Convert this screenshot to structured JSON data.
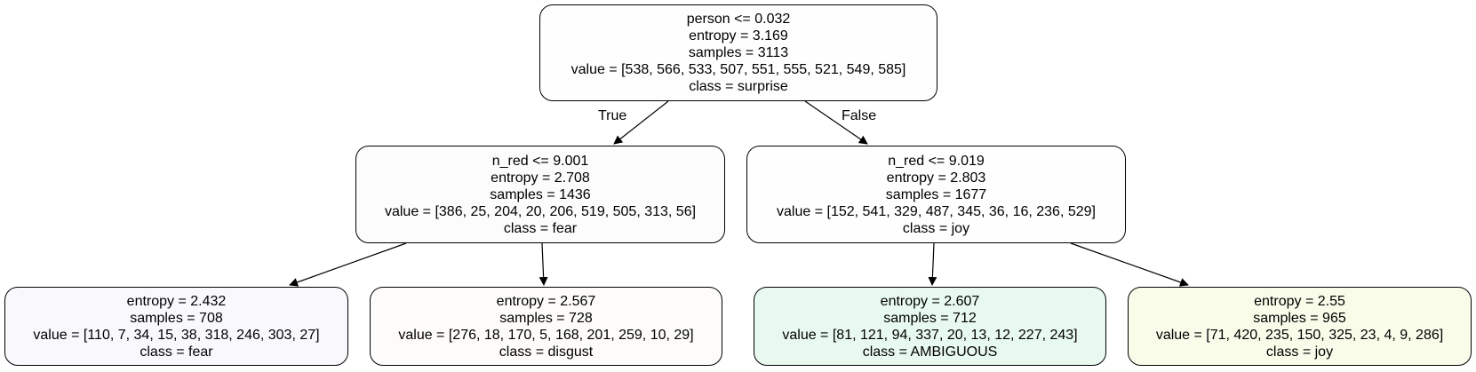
{
  "nodes": [
    {
      "lines": [
        "person <= 0.032",
        "entropy = 3.169",
        "samples = 3113",
        "value = [538, 566, 533, 507, 551, 555, 521, 549, 585]",
        "class = surprise"
      ],
      "fill": "#fefefe"
    },
    {
      "lines": [
        "n_red <= 9.001",
        "entropy = 2.708",
        "samples = 1436",
        "value = [386, 25, 204, 20, 206, 519, 505, 313, 56]",
        "class = fear"
      ],
      "fill": "#fcfcfd"
    },
    {
      "lines": [
        "n_red <= 9.019",
        "entropy = 2.803",
        "samples = 1677",
        "value = [152, 541, 329, 487, 345, 36, 16, 236, 529]",
        "class = joy"
      ],
      "fill": "#fefefe"
    },
    {
      "lines": [
        "entropy = 2.432",
        "samples = 708",
        "value = [110, 7, 34, 15, 38, 318, 246, 303, 27]",
        "class = fear"
      ],
      "fill": "#f9f9fd"
    },
    {
      "lines": [
        "entropy = 2.567",
        "samples = 728",
        "value = [276, 18, 170, 5, 168, 201, 259, 10, 29]",
        "class = disgust"
      ],
      "fill": "#fdfcfa"
    },
    {
      "lines": [
        "entropy = 2.607",
        "samples = 712",
        "value = [81, 121, 94, 337, 20, 13, 12, 227, 243]",
        "class = AMBIGUOUS"
      ],
      "fill": "#e8f9ef"
    },
    {
      "lines": [
        "entropy = 2.55",
        "samples = 965",
        "value = [71, 420, 235, 150, 325, 23, 4, 9, 286]",
        "class = joy"
      ],
      "fill": "#f8fce9"
    }
  ],
  "edge_labels": {
    "true": "True",
    "false": "False"
  }
}
